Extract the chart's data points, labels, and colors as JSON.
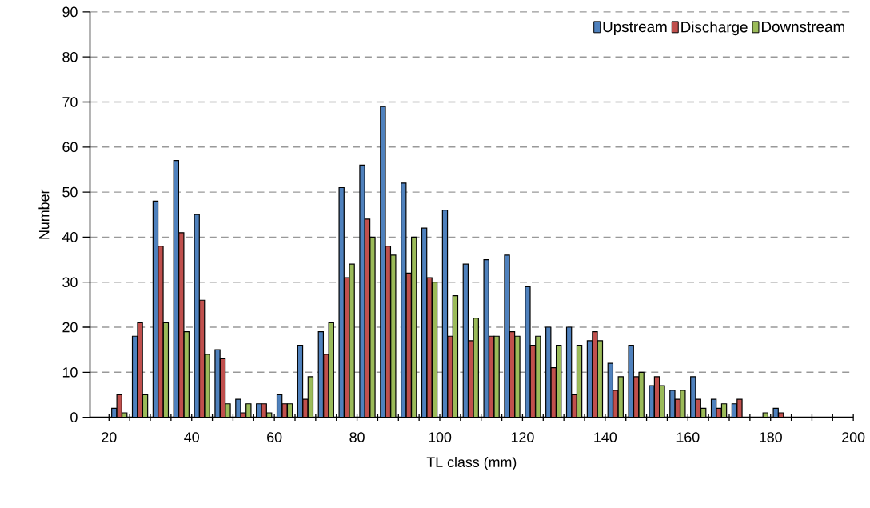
{
  "chart_data": {
    "type": "bar",
    "xlabel": "TL class (mm)",
    "ylabel": "Number",
    "x": [
      22.5,
      27.5,
      32.5,
      37.5,
      42.5,
      47.5,
      52.5,
      57.5,
      62.5,
      67.5,
      72.5,
      77.5,
      82.5,
      87.5,
      92.5,
      97.5,
      102.5,
      107.5,
      112.5,
      117.5,
      122.5,
      127.5,
      132.5,
      137.5,
      142.5,
      147.5,
      152.5,
      157.5,
      162.5,
      167.5,
      172.5,
      177.5,
      182.5
    ],
    "series": [
      {
        "name": "Upstream",
        "color": "#4f81bd",
        "values": [
          2,
          18,
          48,
          57,
          45,
          15,
          4,
          3,
          5,
          16,
          19,
          51,
          56,
          69,
          52,
          42,
          46,
          34,
          35,
          36,
          29,
          20,
          20,
          17,
          12,
          16,
          7,
          6,
          9,
          4,
          3,
          null,
          2
        ]
      },
      {
        "name": "Discharge",
        "color": "#c0504d",
        "values": [
          5,
          21,
          38,
          41,
          26,
          13,
          1,
          3,
          3,
          4,
          14,
          31,
          44,
          38,
          32,
          31,
          18,
          17,
          18,
          19,
          16,
          11,
          5,
          19,
          6,
          9,
          9,
          4,
          4,
          2,
          4,
          null,
          1
        ]
      },
      {
        "name": "Downstream",
        "color": "#9bbb59",
        "values": [
          1,
          5,
          21,
          19,
          14,
          3,
          3,
          1,
          3,
          9,
          21,
          34,
          40,
          36,
          40,
          30,
          27,
          22,
          18,
          18,
          18,
          16,
          16,
          17,
          9,
          10,
          7,
          6,
          2,
          3,
          null,
          1,
          null
        ]
      }
    ],
    "xlim": [
      15.4,
      200
    ],
    "xticks": [
      20,
      {
        "value": 25,
        "label": null
      },
      {
        "value": 30,
        "label": null
      },
      {
        "value": 35,
        "label": null
      },
      40,
      {
        "value": 45,
        "label": null
      },
      {
        "value": 50,
        "label": null
      },
      {
        "value": 55,
        "label": null
      },
      60,
      {
        "value": 65,
        "label": null
      },
      {
        "value": 70,
        "label": null
      },
      {
        "value": 75,
        "label": null
      },
      80,
      {
        "value": 85,
        "label": null
      },
      {
        "value": 90,
        "label": null
      },
      {
        "value": 95,
        "label": null
      },
      100,
      {
        "value": 105,
        "label": null
      },
      {
        "value": 110,
        "label": null
      },
      {
        "value": 115,
        "label": null
      },
      120,
      {
        "value": 125,
        "label": null
      },
      {
        "value": 130,
        "label": null
      },
      {
        "value": 135,
        "label": null
      },
      140,
      {
        "value": 145,
        "label": null
      },
      {
        "value": 150,
        "label": null
      },
      {
        "value": 155,
        "label": null
      },
      160,
      {
        "value": 165,
        "label": null
      },
      {
        "value": 170,
        "label": null
      },
      {
        "value": 175,
        "label": null
      },
      180,
      {
        "value": 185,
        "label": null
      },
      {
        "value": 190,
        "label": null
      },
      {
        "value": 195,
        "label": null
      },
      200
    ],
    "ylim": [
      0,
      90
    ],
    "yticks": [
      0,
      10,
      20,
      30,
      40,
      50,
      60,
      70,
      80,
      90
    ],
    "grid": "y",
    "legend": "top right"
  }
}
